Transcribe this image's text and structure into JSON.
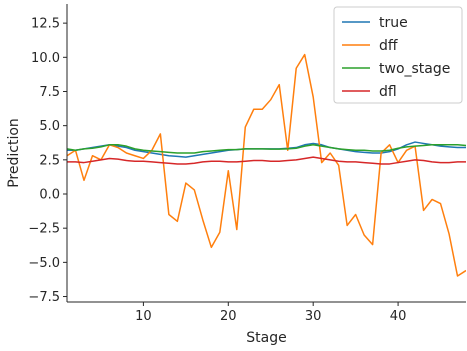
{
  "chart_data": {
    "type": "line",
    "title": "",
    "xlabel": "Stage",
    "ylabel": "Prediction",
    "xlim": [
      1,
      48
    ],
    "ylim": [
      -7.9,
      13.9
    ],
    "xticks": [
      10,
      20,
      30,
      40
    ],
    "yticks": [
      -7.5,
      -5.0,
      -2.5,
      0.0,
      2.5,
      5.0,
      7.5,
      10.0,
      12.5
    ],
    "ytick_labels": [
      "−7.5",
      "−5.0",
      "−2.5",
      "0.0",
      "2.5",
      "5.0",
      "7.5",
      "10.0",
      "12.5"
    ],
    "grid": false,
    "legend_position": "top-right",
    "x": [
      1,
      2,
      3,
      4,
      5,
      6,
      7,
      8,
      9,
      10,
      11,
      12,
      13,
      14,
      15,
      16,
      17,
      18,
      19,
      20,
      21,
      22,
      23,
      24,
      25,
      26,
      27,
      28,
      29,
      30,
      31,
      32,
      33,
      34,
      35,
      36,
      37,
      38,
      39,
      40,
      41,
      42,
      43,
      44,
      45,
      46,
      47,
      48
    ],
    "series": [
      {
        "name": "true",
        "color": "#1f77b4",
        "values": [
          3.2,
          3.2,
          3.3,
          3.4,
          3.5,
          3.6,
          3.5,
          3.4,
          3.2,
          3.1,
          3.0,
          2.9,
          2.8,
          2.75,
          2.7,
          2.8,
          2.9,
          3.0,
          3.1,
          3.2,
          3.25,
          3.3,
          3.3,
          3.3,
          3.3,
          3.3,
          3.35,
          3.4,
          3.6,
          3.7,
          3.6,
          3.4,
          3.3,
          3.2,
          3.1,
          3.05,
          3.0,
          3.0,
          3.1,
          3.3,
          3.6,
          3.8,
          3.7,
          3.6,
          3.5,
          3.45,
          3.4,
          3.4
        ]
      },
      {
        "name": "dff",
        "color": "#ff7f0e",
        "values": [
          2.8,
          3.2,
          1.0,
          2.8,
          2.5,
          3.6,
          3.4,
          3.0,
          2.8,
          2.6,
          3.2,
          4.4,
          -1.5,
          -2.0,
          0.8,
          0.3,
          -1.9,
          -3.9,
          -2.8,
          1.7,
          -2.6,
          4.9,
          6.2,
          6.2,
          6.9,
          8.0,
          3.2,
          9.2,
          10.2,
          7.1,
          2.3,
          3.0,
          2.1,
          -2.3,
          -1.5,
          -3.0,
          -3.7,
          3.0,
          3.6,
          2.3,
          3.2,
          3.5,
          -1.2,
          -0.4,
          -0.7,
          -2.9,
          -6.0,
          -5.6
        ]
      },
      {
        "name": "two_stage",
        "color": "#2ca02c",
        "values": [
          3.3,
          3.2,
          3.3,
          3.35,
          3.45,
          3.6,
          3.6,
          3.5,
          3.3,
          3.2,
          3.15,
          3.1,
          3.05,
          3.0,
          3.0,
          3.0,
          3.1,
          3.15,
          3.2,
          3.25,
          3.25,
          3.3,
          3.3,
          3.3,
          3.28,
          3.28,
          3.3,
          3.35,
          3.5,
          3.6,
          3.5,
          3.4,
          3.3,
          3.25,
          3.2,
          3.2,
          3.15,
          3.15,
          3.2,
          3.35,
          3.45,
          3.5,
          3.55,
          3.6,
          3.6,
          3.6,
          3.6,
          3.55
        ]
      },
      {
        "name": "dfl",
        "color": "#d62728",
        "values": [
          2.35,
          2.35,
          2.3,
          2.4,
          2.5,
          2.6,
          2.55,
          2.45,
          2.4,
          2.4,
          2.35,
          2.3,
          2.25,
          2.2,
          2.2,
          2.25,
          2.35,
          2.4,
          2.4,
          2.35,
          2.35,
          2.4,
          2.45,
          2.45,
          2.4,
          2.4,
          2.45,
          2.5,
          2.6,
          2.7,
          2.6,
          2.5,
          2.4,
          2.35,
          2.35,
          2.3,
          2.25,
          2.2,
          2.2,
          2.3,
          2.4,
          2.5,
          2.45,
          2.35,
          2.3,
          2.3,
          2.35,
          2.35
        ]
      }
    ]
  }
}
